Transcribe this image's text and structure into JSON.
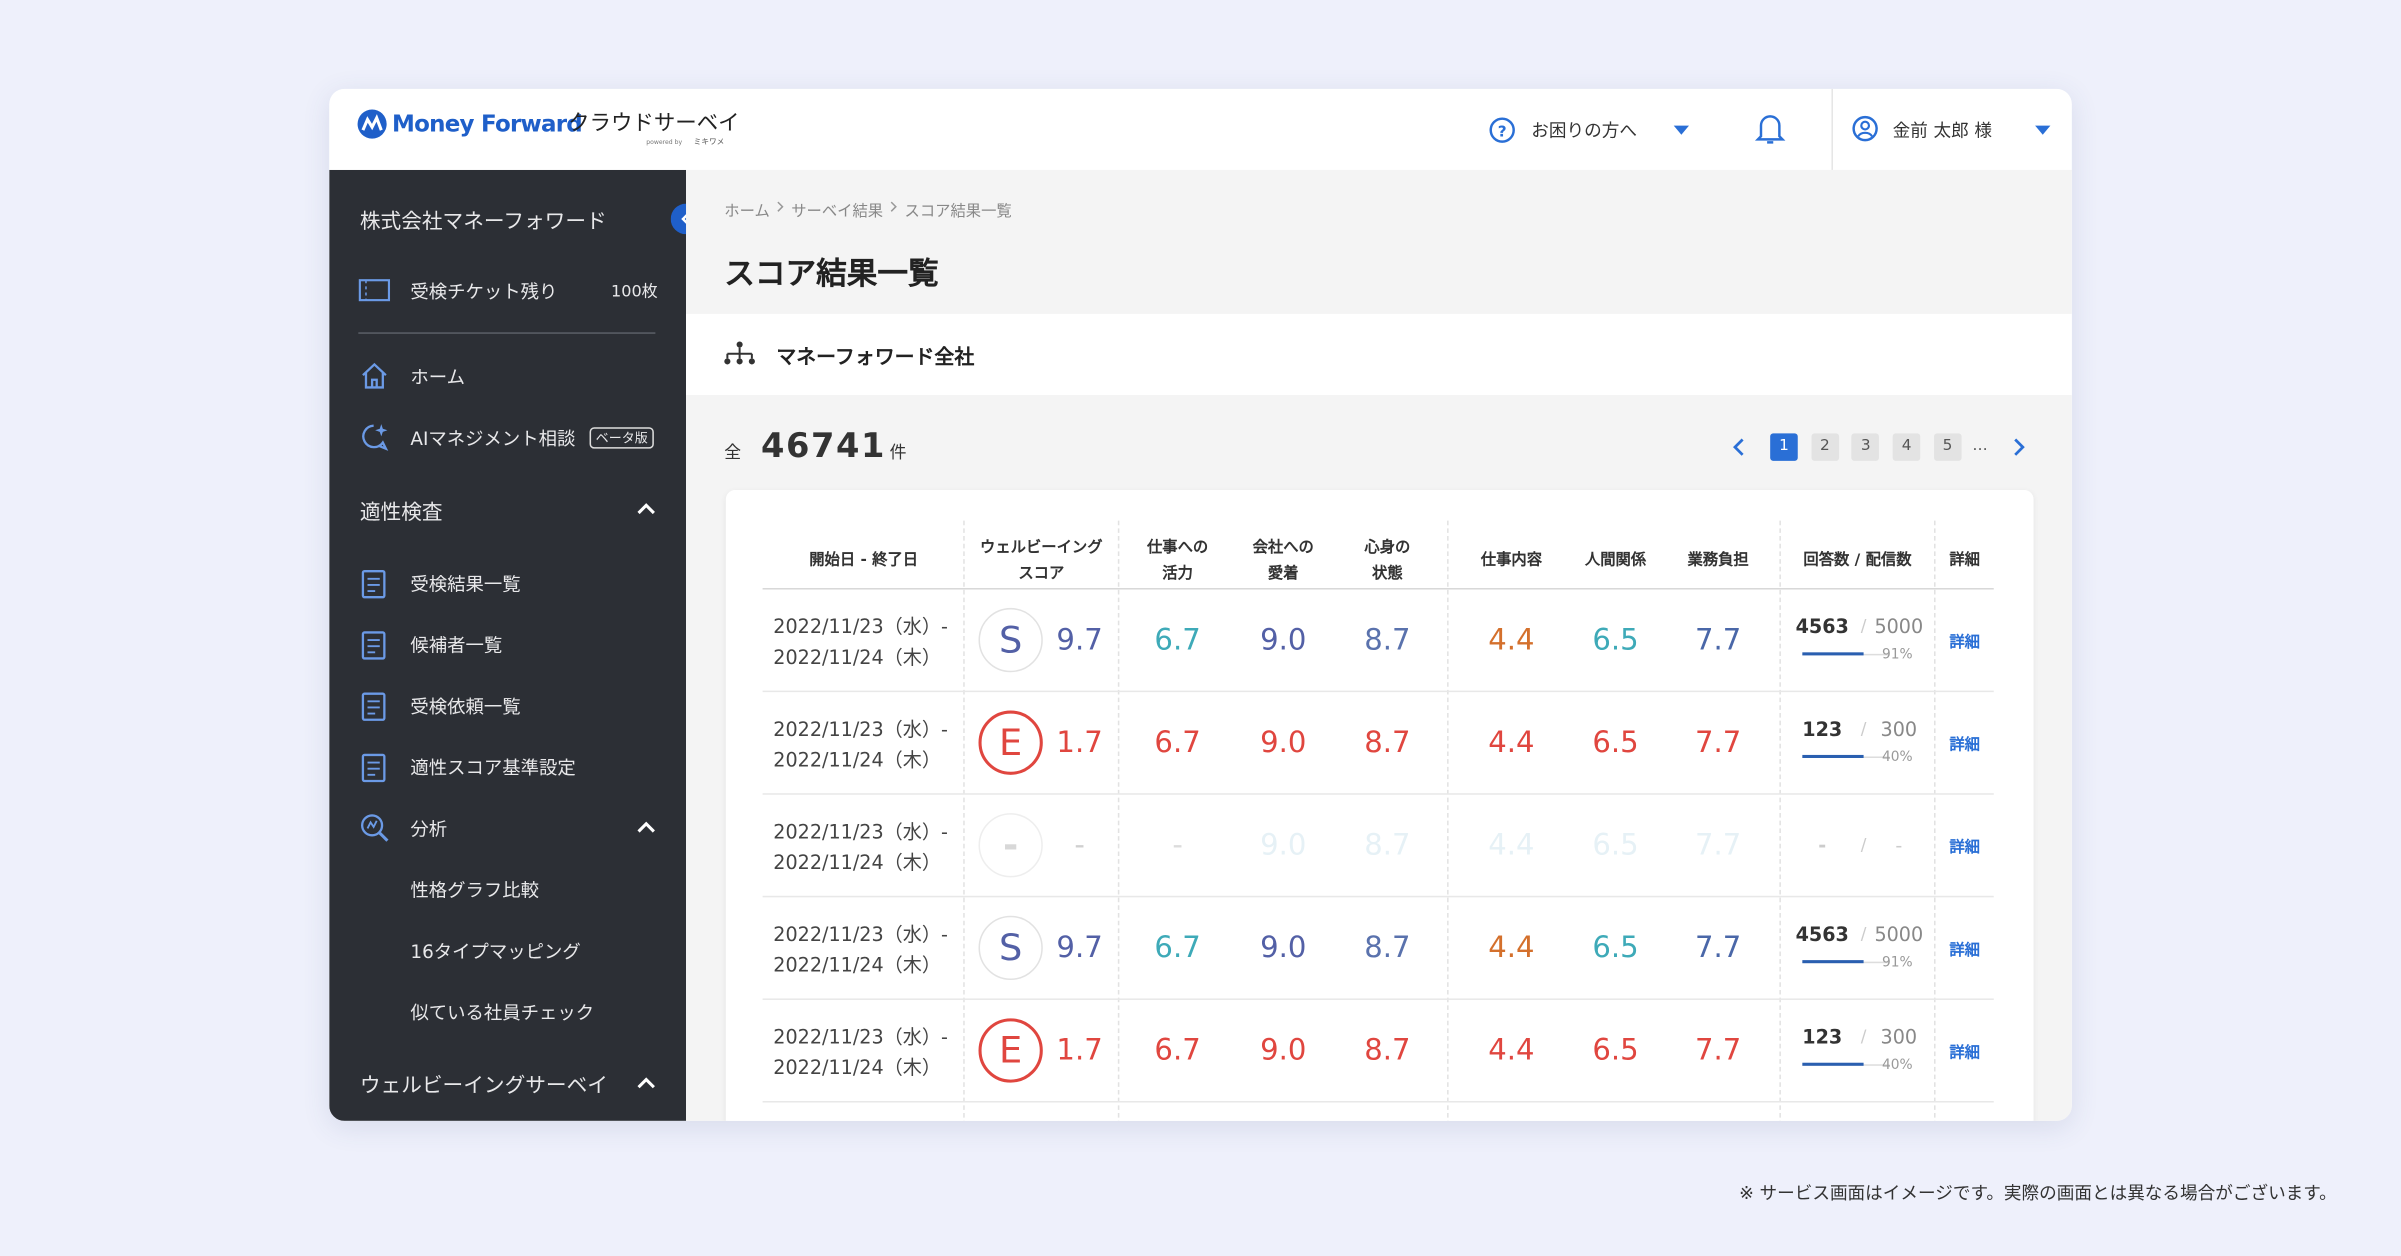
{
  "header": {
    "logo": "Money Forward",
    "product": "クラウドサーベイ",
    "powered_by": "powered by",
    "partner": "ミキワメ",
    "help": "お困りの方へ",
    "user": "金前 太郎 様"
  },
  "sidebar": {
    "company": "株式会社マネーフォワード",
    "ticket_label": "受検チケット残り",
    "ticket_count": "100枚",
    "home": "ホーム",
    "ai": "AIマネジメント相談",
    "beta": "ベータ版",
    "aptitude": "適性検査",
    "aptitude_items": [
      "受検結果一覧",
      "候補者一覧",
      "受検依頼一覧",
      "適性スコア基準設定"
    ],
    "analysis": "分析",
    "analysis_items": [
      "性格グラフ比較",
      "16タイプマッピング",
      "似ている社員チェック"
    ],
    "wellbeing": "ウェルビーイングサーベイ"
  },
  "breadcrumb": [
    "ホーム",
    "サーベイ結果",
    "スコア結果一覧"
  ],
  "page_title": "スコア結果一覧",
  "org": "マネーフォワード全社",
  "total": {
    "prefix": "全",
    "count": "46741",
    "suffix": "件"
  },
  "pagination": {
    "pages": [
      "1",
      "2",
      "3",
      "4",
      "5"
    ],
    "ellipsis": "…"
  },
  "table": {
    "headers": [
      [
        "開始日 - 終了日"
      ],
      [
        "ウェルビーイング",
        "スコア"
      ],
      [
        "仕事への",
        "活力"
      ],
      [
        "会社への",
        "愛着"
      ],
      [
        "心身の",
        "状態"
      ],
      [
        "仕事内容"
      ],
      [
        "人間関係"
      ],
      [
        "業務負担"
      ],
      [
        "回答数 / 配信数"
      ],
      [
        "詳細"
      ]
    ],
    "answer_separator": "/",
    "rows": [
      {
        "start": "2022/11/23（水）-",
        "end": "2022/11/24（木）",
        "grade": "S",
        "score": "9.7",
        "scores": [
          "6.7",
          "9.0",
          "8.7",
          "4.4",
          "6.5",
          "7.7"
        ],
        "answered": "4563",
        "delivered": "5000",
        "rate": "91%",
        "detail": "詳細"
      },
      {
        "start": "2022/11/23（水）-",
        "end": "2022/11/24（木）",
        "grade": "E",
        "score": "1.7",
        "scores": [
          "6.7",
          "9.0",
          "8.7",
          "4.4",
          "6.5",
          "7.7"
        ],
        "answered": "123",
        "delivered": "300",
        "rate": "40%",
        "detail": "詳細"
      },
      {
        "start": "2022/11/23（水）-",
        "end": "2022/11/24（木）",
        "grade": "-",
        "score": "-",
        "scores": [
          "-",
          "9.0",
          "8.7",
          "4.4",
          "6.5",
          "7.7"
        ],
        "answered": "-",
        "delivered": "-",
        "detail": "詳細"
      },
      {
        "start": "2022/11/23（水）-",
        "end": "2022/11/24（木）",
        "grade": "S",
        "score": "9.7",
        "scores": [
          "6.7",
          "9.0",
          "8.7",
          "4.4",
          "6.5",
          "7.7"
        ],
        "answered": "4563",
        "delivered": "5000",
        "rate": "91%",
        "detail": "詳細"
      },
      {
        "start": "2022/11/23（水）-",
        "end": "2022/11/24（木）",
        "grade": "E",
        "score": "1.7",
        "scores": [
          "6.7",
          "9.0",
          "8.7",
          "4.4",
          "6.5",
          "7.7"
        ],
        "answered": "123",
        "delivered": "300",
        "rate": "40%",
        "detail": "詳細"
      }
    ]
  },
  "footnote": "※ サービス画面はイメージです。実際の画面とは異なる場合がございます。"
}
